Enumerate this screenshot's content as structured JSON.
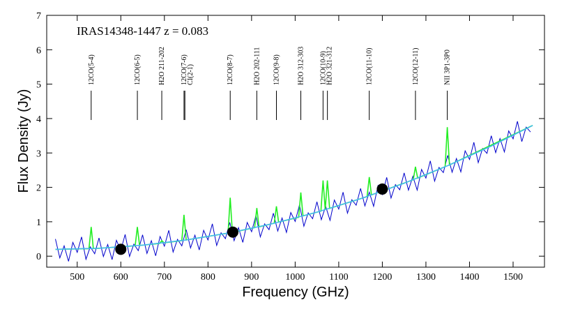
{
  "chart_data": {
    "type": "spectrum",
    "title": "IRAS14348-1447   z = 0.083",
    "x_label": "Frequency  (GHz)",
    "y_label": "Flux Density (Jy)",
    "xlim": [
      430,
      1572
    ],
    "ylim": [
      -0.32,
      7
    ],
    "xticks": [
      500,
      600,
      700,
      800,
      900,
      1000,
      1100,
      1200,
      1300,
      1400,
      1500
    ],
    "yticks": [
      0,
      1,
      2,
      3,
      4,
      5,
      6,
      7
    ],
    "series": [
      {
        "style": "line",
        "color": "#0000cc",
        "x": [
          450,
          460,
          470,
          480,
          490,
          500,
          510,
          520,
          530,
          540,
          550,
          560,
          570,
          580,
          590,
          600,
          610,
          620,
          630,
          640,
          650,
          660,
          670,
          680,
          690,
          700,
          710,
          720,
          730,
          740,
          750,
          760,
          770,
          780,
          790,
          800,
          810,
          820,
          830,
          840,
          850,
          860,
          870,
          880,
          890,
          900,
          910,
          920,
          930,
          940,
          950,
          960,
          970,
          980,
          990,
          1000,
          1010,
          1020,
          1030,
          1040,
          1050,
          1060,
          1070,
          1080,
          1090,
          1100,
          1110,
          1120,
          1130,
          1140,
          1150,
          1160,
          1170,
          1180,
          1190,
          1200,
          1210,
          1220,
          1230,
          1240,
          1250,
          1260,
          1270,
          1280,
          1290,
          1300,
          1310,
          1320,
          1330,
          1340,
          1350,
          1360,
          1370,
          1380,
          1390,
          1400,
          1410,
          1420,
          1430,
          1440,
          1450,
          1460,
          1470,
          1480,
          1490,
          1500,
          1510,
          1520,
          1530,
          1540
        ],
        "values": [
          0.5,
          -0.05,
          0.3,
          -0.15,
          0.4,
          0.11,
          0.56,
          -0.09,
          0.27,
          0.07,
          0.53,
          -0.01,
          0.34,
          -0.1,
          0.46,
          0.17,
          0.63,
          -0.01,
          0.35,
          0.16,
          0.62,
          0.08,
          0.45,
          0.01,
          0.57,
          0.29,
          0.75,
          0.12,
          0.49,
          0.3,
          0.77,
          0.24,
          0.61,
          0.18,
          0.75,
          0.47,
          0.94,
          0.31,
          0.68,
          0.51,
          0.98,
          0.45,
          0.83,
          0.4,
          0.98,
          0.71,
          1.18,
          0.56,
          0.94,
          0.77,
          1.25,
          0.73,
          1.11,
          0.69,
          1.27,
          1.01,
          1.49,
          0.87,
          1.26,
          1.09,
          1.58,
          1.06,
          1.45,
          1.04,
          1.63,
          1.37,
          1.86,
          1.25,
          1.64,
          1.48,
          1.97,
          1.46,
          1.86,
          1.45,
          2.05,
          1.79,
          2.29,
          1.69,
          2.08,
          1.93,
          2.42,
          1.92,
          2.32,
          1.92,
          2.52,
          2.27,
          2.77,
          2.18,
          2.58,
          2.43,
          2.93,
          2.44,
          2.84,
          2.45,
          3.06,
          2.81,
          3.31,
          2.72,
          3.13,
          2.99,
          3.5,
          3.01,
          3.42,
          3.03,
          3.64,
          3.41,
          3.92,
          3.33,
          3.75,
          3.61
        ]
      },
      {
        "style": "line",
        "color": "#22ee22",
        "x": [
          450,
          527,
          532,
          537,
          633,
          638,
          643,
          689,
          694,
          699,
          740,
          745,
          750,
          846,
          851,
          856,
          907,
          912,
          917,
          952,
          957,
          962,
          1008,
          1013,
          1018,
          1059,
          1064,
          1069,
          1074,
          1079,
          1165,
          1170,
          1175,
          1271,
          1276,
          1281,
          1344,
          1349,
          1354,
          1545
        ],
        "values": [
          0.2,
          0.22,
          0.85,
          0.22,
          0.3,
          0.85,
          0.31,
          0.37,
          0.45,
          0.39,
          0.45,
          1.2,
          0.47,
          0.67,
          1.7,
          0.69,
          0.83,
          1.4,
          0.85,
          0.96,
          1.45,
          0.99,
          1.13,
          1.85,
          1.17,
          1.31,
          2.2,
          1.35,
          2.2,
          1.39,
          1.73,
          2.3,
          1.78,
          2.22,
          2.6,
          2.27,
          2.6,
          3.75,
          2.65,
          3.8
        ]
      },
      {
        "style": "line",
        "color": "#44bbee",
        "x": [
          450,
          550,
          650,
          750,
          850,
          950,
          1050,
          1150,
          1250,
          1350,
          1450,
          1545
        ],
        "values": [
          0.2,
          0.23,
          0.32,
          0.47,
          0.68,
          0.95,
          1.28,
          1.67,
          2.12,
          2.63,
          3.2,
          3.8
        ]
      },
      {
        "style": "dots",
        "color": "#000000",
        "x": [
          600,
          857,
          1200
        ],
        "values": [
          0.2,
          0.7,
          1.95
        ]
      }
    ],
    "lines": [
      {
        "label": "12CO(5-4)",
        "x": 532
      },
      {
        "label": "12CO(6-5)",
        "x": 638
      },
      {
        "label": "H2O 211-202",
        "x": 694
      },
      {
        "label": "12CO(7-6)",
        "x": 745
      },
      {
        "label": "CI(2-1)",
        "x": 747
      },
      {
        "label": "12CO(8-7)",
        "x": 851
      },
      {
        "label": "H2O 202-111",
        "x": 912
      },
      {
        "label": "12CO(9-8)",
        "x": 957
      },
      {
        "label": "H2O 312-303",
        "x": 1013
      },
      {
        "label": "12CO(10-9)",
        "x": 1064
      },
      {
        "label": "H2O 321-312",
        "x": 1074
      },
      {
        "label": "12CO(11-10)",
        "x": 1170
      },
      {
        "label": "12CO(12-11)",
        "x": 1276
      },
      {
        "label": "NII 3P1-3P0",
        "x": 1349
      }
    ]
  }
}
